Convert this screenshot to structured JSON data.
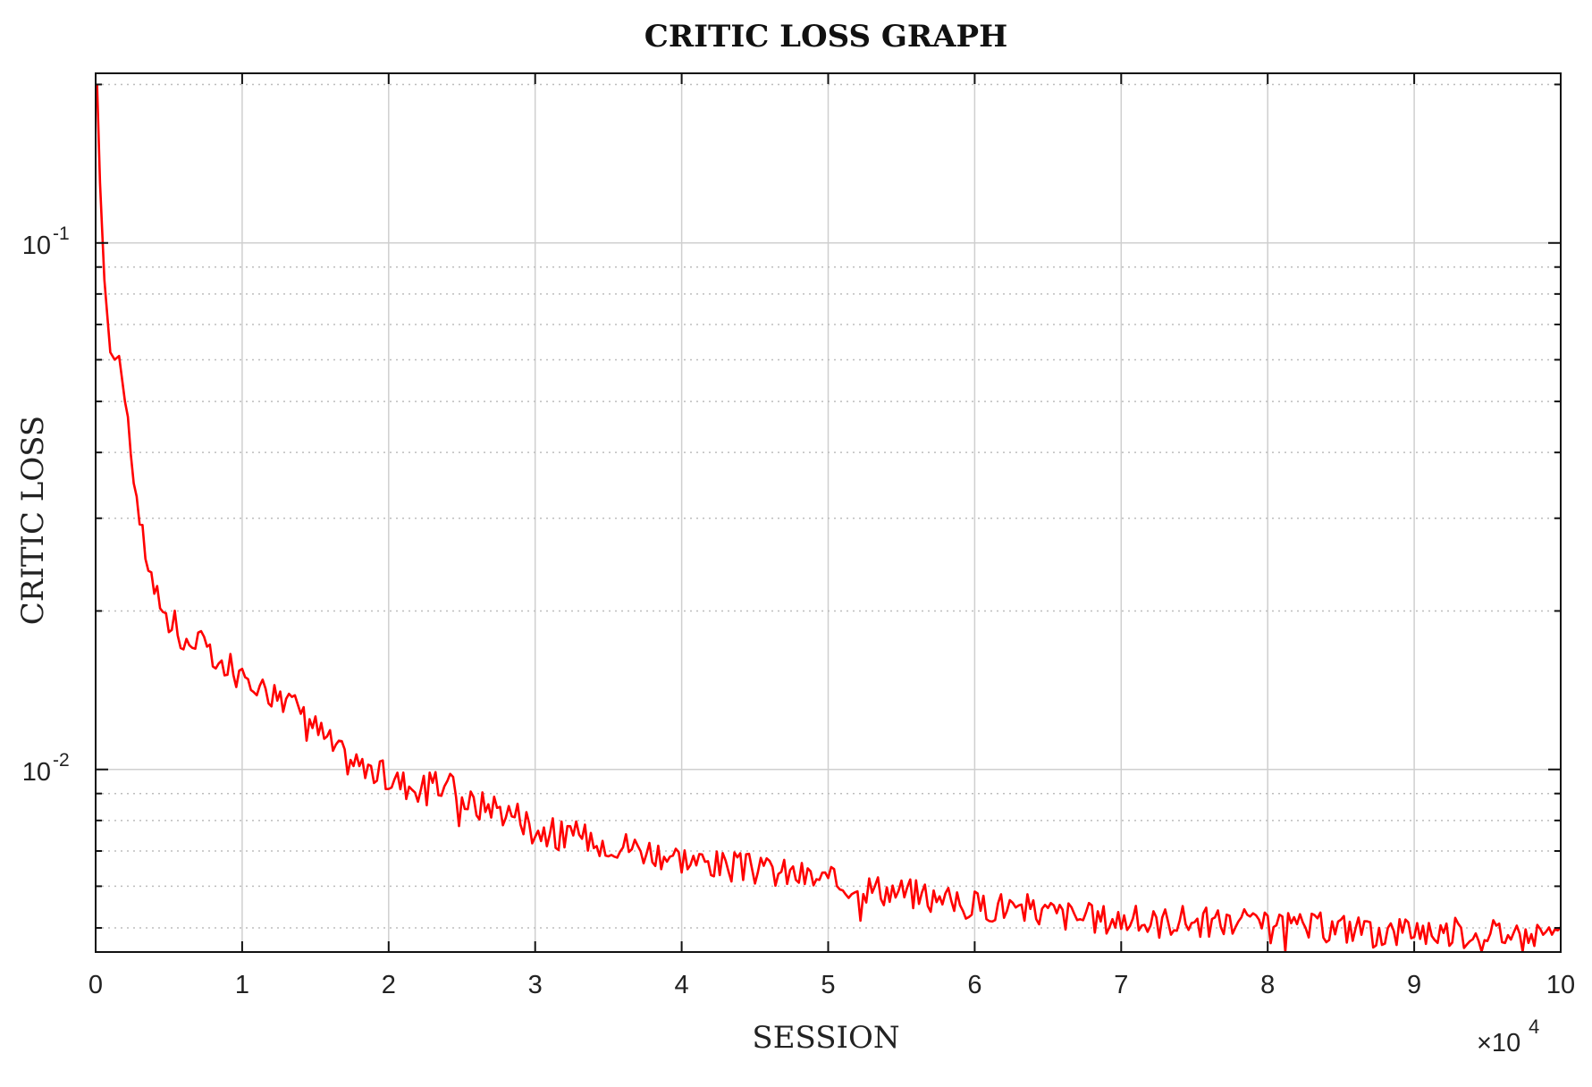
{
  "chart_data": {
    "type": "line",
    "title": "CRITIC LOSS GRAPH",
    "xlabel": "SESSION",
    "ylabel": "CRITIC LOSS",
    "x_multiplier_label": "×10",
    "x_multiplier_exponent": "4",
    "x_scale": 10000,
    "xlim": [
      0,
      100000
    ],
    "ylim": [
      0.0045,
      0.21
    ],
    "yscale": "log",
    "grid": true,
    "x_ticks": [
      0,
      10000,
      20000,
      30000,
      40000,
      50000,
      60000,
      70000,
      80000,
      90000,
      100000
    ],
    "x_tick_labels": [
      "0",
      "1",
      "2",
      "3",
      "4",
      "5",
      "6",
      "7",
      "8",
      "9",
      "10"
    ],
    "y_major_ticks": [
      {
        "value": 0.1,
        "base": "10",
        "exp": "-1"
      },
      {
        "value": 0.01,
        "base": "10",
        "exp": "-2"
      }
    ],
    "y_minor_ticks": [
      0.005,
      0.006,
      0.007,
      0.008,
      0.009,
      0.02,
      0.03,
      0.04,
      0.05,
      0.06,
      0.07,
      0.08,
      0.09,
      0.2
    ],
    "series": [
      {
        "color": "#ff0000",
        "x": [
          100,
          300,
          600,
          1000,
          1300,
          1600,
          2000,
          2500,
          3000,
          3500,
          4000,
          4500,
          5000,
          5500,
          6000,
          6500,
          7000,
          7500,
          8000,
          8500,
          9000,
          9500,
          10000,
          11000,
          12000,
          13000,
          14000,
          15000,
          16000,
          17000,
          18000,
          19000,
          20000,
          21000,
          22000,
          23000,
          24000,
          25000,
          26000,
          27000,
          28000,
          29000,
          30000,
          32000,
          34000,
          36000,
          38000,
          40000,
          42000,
          44000,
          46000,
          48000,
          50000,
          52000,
          54000,
          56000,
          58000,
          60000,
          62000,
          64000,
          66000,
          68000,
          70000,
          72000,
          74000,
          76000,
          78000,
          80000,
          82000,
          84000,
          86000,
          88000,
          90000,
          92000,
          94000,
          96000,
          98000,
          100000
        ],
        "y": [
          0.2,
          0.13,
          0.085,
          0.062,
          0.06,
          0.061,
          0.05,
          0.038,
          0.03,
          0.025,
          0.022,
          0.02,
          0.019,
          0.018,
          0.017,
          0.0175,
          0.0178,
          0.0172,
          0.016,
          0.0155,
          0.0153,
          0.015,
          0.0148,
          0.0145,
          0.0142,
          0.0138,
          0.013,
          0.012,
          0.0112,
          0.0105,
          0.0103,
          0.0099,
          0.0096,
          0.0094,
          0.0093,
          0.0092,
          0.0094,
          0.0088,
          0.0085,
          0.0086,
          0.0083,
          0.0082,
          0.0077,
          0.0075,
          0.0074,
          0.0072,
          0.007,
          0.0068,
          0.0066,
          0.0065,
          0.0064,
          0.0063,
          0.0061,
          0.006,
          0.0059,
          0.0058,
          0.0056,
          0.0055,
          0.0055,
          0.0054,
          0.0053,
          0.0052,
          0.0052,
          0.0051,
          0.0052,
          0.0051,
          0.0051,
          0.005,
          0.005,
          0.005,
          0.005,
          0.0049,
          0.005,
          0.0049,
          0.0049,
          0.0049,
          0.0049,
          0.0049
        ]
      }
    ]
  }
}
